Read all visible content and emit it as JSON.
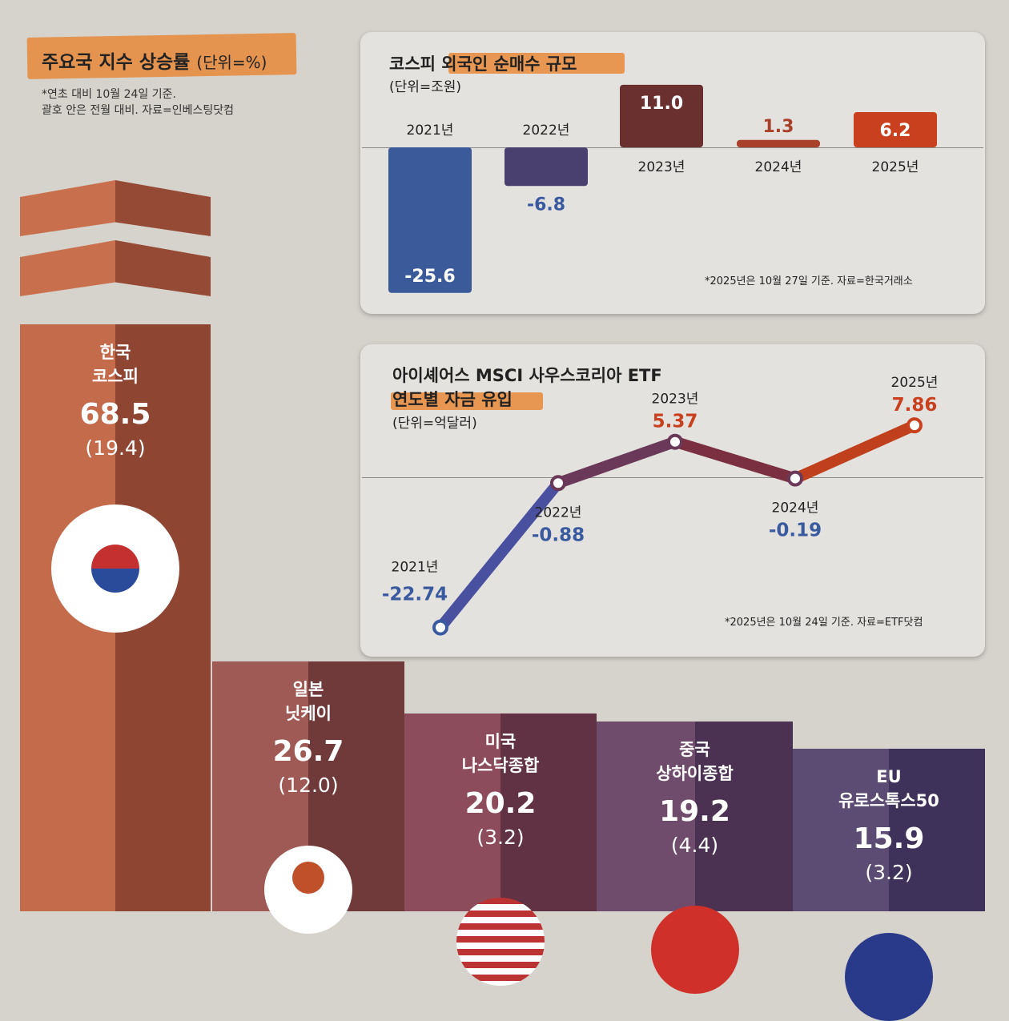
{
  "chart_data": [
    {
      "type": "bar",
      "title": "주요국 지수 상승률",
      "unit": "(단위=%)",
      "note": [
        "*연초 대비 10월 24일 기준.",
        "괄호 안은 전월 대비. 자료=인베스팅닷컴"
      ],
      "categories": [
        [
          "한국",
          "코스피"
        ],
        [
          "일본",
          "닛케이"
        ],
        [
          "미국",
          "나스닥종합"
        ],
        [
          "중국",
          "상하이종합"
        ],
        [
          "EU",
          "유로스톡스50"
        ]
      ],
      "values": [
        68.5,
        26.7,
        20.2,
        19.2,
        15.9
      ],
      "values_label": [
        "68.5",
        "26.7",
        "20.2",
        "19.2",
        "15.9"
      ],
      "secondary": [
        "(19.4)",
        "(12.0)",
        "(3.2)",
        "(4.4)",
        "(3.2)"
      ],
      "colors": [
        [
          "#c46b4c",
          "#8e4532"
        ],
        [
          "#a05a55",
          "#703a3a"
        ],
        [
          "#8c4c5c",
          "#603244"
        ],
        [
          "#704c6c",
          "#4c3252"
        ],
        [
          "#5c4c74",
          "#3e325a"
        ]
      ]
    },
    {
      "type": "bar",
      "title": "코스피 외국인 순매수 규모",
      "unit": "(단위=조원)",
      "note": "*2025년은 10월 27일 기준. 자료=한국거래소",
      "categories": [
        "2021년",
        "2022년",
        "2023년",
        "2024년",
        "2025년"
      ],
      "values": [
        -25.6,
        -6.8,
        11.0,
        1.3,
        6.2
      ],
      "values_label": [
        "-25.6",
        "-6.8",
        "11.0",
        "1.3",
        "6.2"
      ],
      "colors": [
        "#3a5a9a",
        "#4a4070",
        "#6a3030",
        "#a8402a",
        "#c8401e"
      ]
    },
    {
      "type": "line",
      "title": [
        "아이셰어스 MSCI 사우스코리아 ETF",
        "연도별 자금 유입"
      ],
      "unit": "(단위=억달러)",
      "note": "*2025년은 10월 24일 기준. 자료=ETF닷컴",
      "x": [
        "2021년",
        "2022년",
        "2023년",
        "2024년",
        "2025년"
      ],
      "y": [
        -22.74,
        -0.88,
        5.37,
        -0.19,
        7.86
      ],
      "values_label": [
        "-22.74",
        "-0.88",
        "5.37",
        "-0.19",
        "7.86"
      ],
      "colors": {
        "negative": "#3a5aa0",
        "positive": "#c8401e"
      }
    }
  ]
}
